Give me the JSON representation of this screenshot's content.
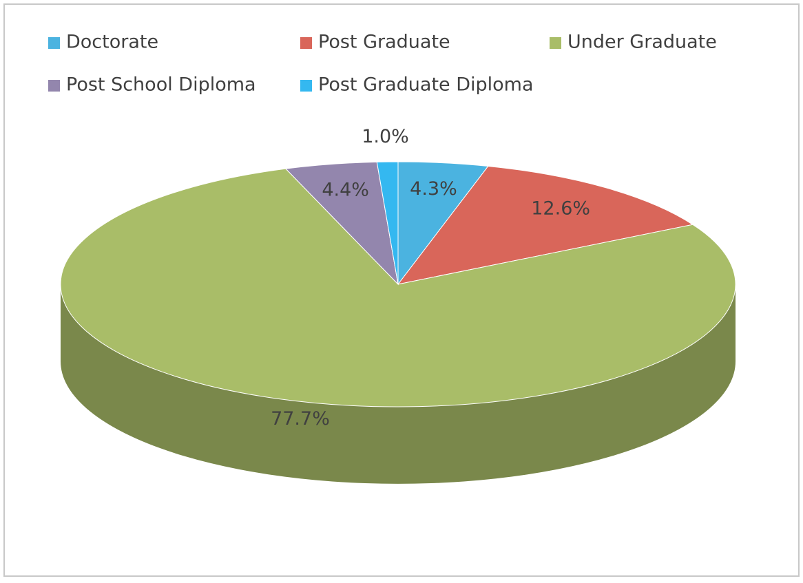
{
  "chart_data": {
    "type": "pie",
    "categories": [
      "Doctorate",
      "Post Graduate",
      "Under Graduate",
      "Post School Diploma",
      "Post Graduate Diploma"
    ],
    "values": [
      4.3,
      12.6,
      77.7,
      4.4,
      1.0
    ],
    "value_labels": [
      "4.3%",
      "12.6%",
      "77.7%",
      "4.4%",
      "1.0%"
    ],
    "colors": [
      "#4bb3e0",
      "#d9665a",
      "#a9bd68",
      "#9386ad",
      "#34b8f0"
    ],
    "legend": "top"
  }
}
